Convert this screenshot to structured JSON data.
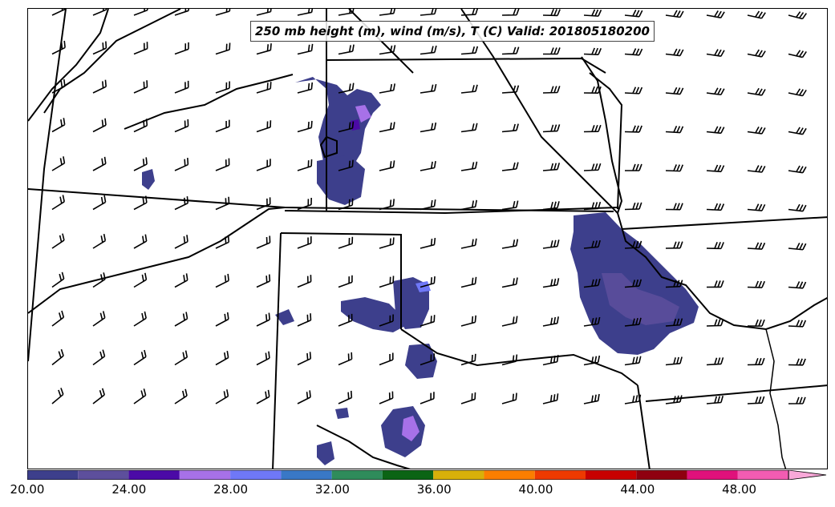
{
  "title": "250 mb height (m), wind (m/s), T (C) Valid: 201805180200",
  "colorbar": {
    "bins": [
      {
        "from": 20,
        "to": 22,
        "color": "#3d3f8c"
      },
      {
        "from": 22,
        "to": 24,
        "color": "#5d4f9c"
      },
      {
        "from": 24,
        "to": 26,
        "color": "#4b0aa6"
      },
      {
        "from": 26,
        "to": 28,
        "color": "#a771e8"
      },
      {
        "from": 28,
        "to": 30,
        "color": "#6f78f7"
      },
      {
        "from": 30,
        "to": 32,
        "color": "#3978c6"
      },
      {
        "from": 32,
        "to": 34,
        "color": "#2f8c5b"
      },
      {
        "from": 34,
        "to": 36,
        "color": "#0b6414"
      },
      {
        "from": 36,
        "to": 38,
        "color": "#d8b00a"
      },
      {
        "from": 38,
        "to": 40,
        "color": "#fb7e00"
      },
      {
        "from": 40,
        "to": 42,
        "color": "#ee3a00"
      },
      {
        "from": 42,
        "to": 44,
        "color": "#c80000"
      },
      {
        "from": 44,
        "to": 46,
        "color": "#8f0010"
      },
      {
        "from": 46,
        "to": 48,
        "color": "#e0117b"
      },
      {
        "from": 48,
        "to": 50,
        "color": "#f35cb2"
      }
    ],
    "extend_color": "#f8a8d8",
    "ticks": [
      "20.00",
      "24.00",
      "28.00",
      "32.00",
      "36.00",
      "40.00",
      "44.00",
      "48.00"
    ],
    "range": [
      20,
      50
    ]
  }
}
